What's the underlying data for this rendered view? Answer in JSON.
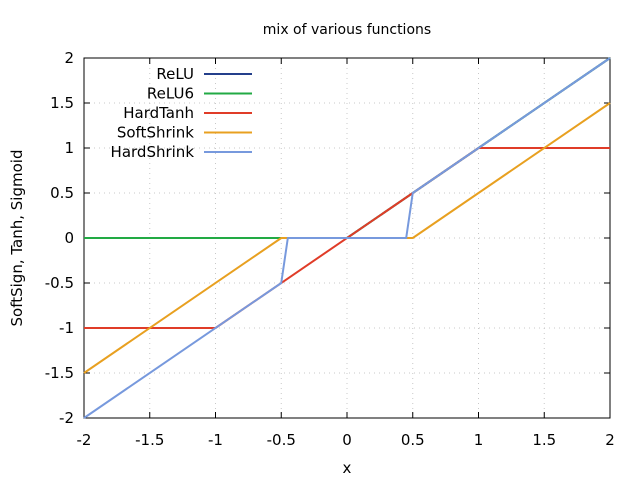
{
  "chart_data": {
    "type": "line",
    "title": "mix of various functions",
    "xlabel": "x",
    "ylabel": "SoftSign, Tanh, Sigmoid",
    "xlim": [
      -2,
      2
    ],
    "ylim": [
      -2,
      2
    ],
    "xticks": [
      -2,
      -1.5,
      -1,
      -0.5,
      0,
      0.5,
      1,
      1.5,
      2
    ],
    "yticks": [
      -2,
      -1.5,
      -1,
      -0.5,
      0,
      0.5,
      1,
      1.5,
      2
    ],
    "xtick_labels": [
      "-2",
      "-1.5",
      "-1",
      "-0.5",
      "0",
      "0.5",
      "1",
      "1.5",
      "2"
    ],
    "ytick_labels": [
      "-2",
      "-1.5",
      "-1",
      "-0.5",
      "0",
      "0.5",
      "1",
      "1.5",
      "2"
    ],
    "grid": true,
    "legend_position": "top-left",
    "series": [
      {
        "name": "ReLU",
        "color": "#243f8b",
        "x": [
          -2,
          -0.05,
          0,
          2
        ],
        "y": [
          0,
          0,
          0,
          2
        ]
      },
      {
        "name": "ReLU6",
        "color": "#22aa44",
        "x": [
          -2,
          0,
          2
        ],
        "y": [
          0,
          0,
          2
        ]
      },
      {
        "name": "HardTanh",
        "color": "#e03c28",
        "x": [
          -2,
          -1,
          1,
          2
        ],
        "y": [
          -1,
          -1,
          1,
          1
        ]
      },
      {
        "name": "SoftShrink",
        "color": "#e8a020",
        "x": [
          -2,
          -0.5,
          0.5,
          2
        ],
        "y": [
          -1.5,
          0,
          0,
          1.5
        ]
      },
      {
        "name": "HardShrink",
        "color": "#7799dd",
        "x": [
          -2,
          -0.5,
          -0.45,
          0.45,
          0.5,
          2
        ],
        "y": [
          -2,
          -0.5,
          0,
          0,
          0.5,
          2
        ]
      }
    ]
  }
}
